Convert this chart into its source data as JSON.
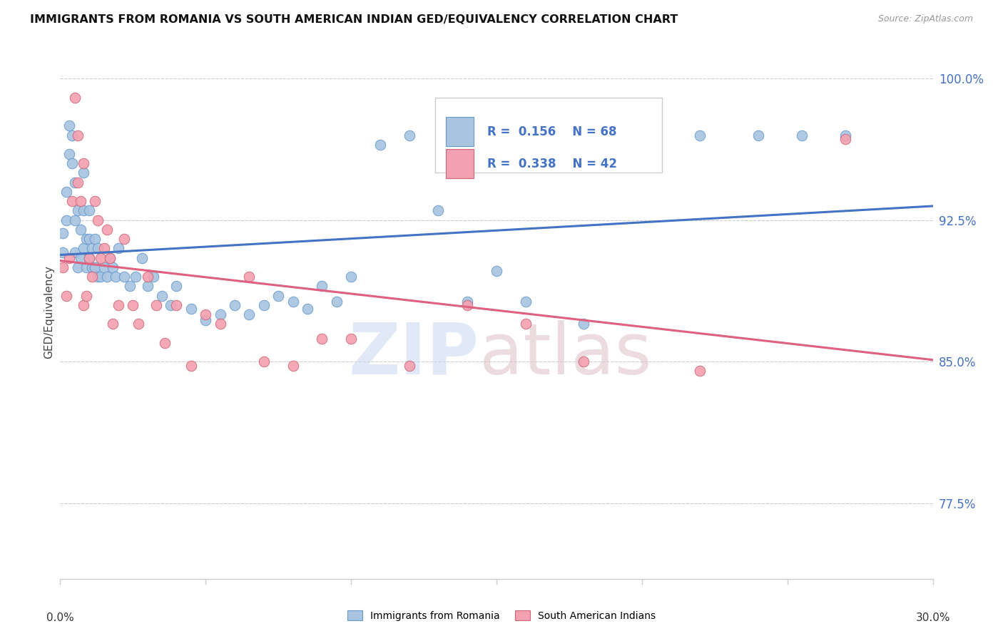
{
  "title": "IMMIGRANTS FROM ROMANIA VS SOUTH AMERICAN INDIAN GED/EQUIVALENCY CORRELATION CHART",
  "source": "Source: ZipAtlas.com",
  "ylabel": "GED/Equivalency",
  "xmin": 0.0,
  "xmax": 0.3,
  "ymin": 0.735,
  "ymax": 1.018,
  "romania_R": 0.156,
  "romania_N": 68,
  "sai_R": 0.338,
  "sai_N": 42,
  "romania_color": "#a8c4e0",
  "romania_edge_color": "#6699cc",
  "sai_color": "#f4a0b0",
  "sai_edge_color": "#cc6677",
  "romania_line_color": "#4472c4",
  "sai_line_color": "#e06080",
  "dashed_line_color": "#aaaaaa",
  "legend_label_romania": "Immigrants from Romania",
  "legend_label_sai": "South American Indians",
  "grid_color": "#cccccc",
  "ytick_vals": [
    0.775,
    0.85,
    0.925,
    1.0
  ],
  "ytick_labels": [
    "77.5%",
    "85.0%",
    "92.5%",
    "100.0%"
  ],
  "xtick_vals": [
    0.0,
    0.05,
    0.1,
    0.15,
    0.2,
    0.25,
    0.3
  ],
  "romania_x": [
    0.001,
    0.001,
    0.002,
    0.002,
    0.003,
    0.003,
    0.004,
    0.004,
    0.005,
    0.005,
    0.005,
    0.006,
    0.006,
    0.007,
    0.007,
    0.008,
    0.008,
    0.008,
    0.009,
    0.009,
    0.01,
    0.01,
    0.01,
    0.011,
    0.011,
    0.012,
    0.012,
    0.013,
    0.013,
    0.014,
    0.015,
    0.016,
    0.017,
    0.018,
    0.019,
    0.02,
    0.022,
    0.024,
    0.026,
    0.028,
    0.03,
    0.032,
    0.035,
    0.038,
    0.04,
    0.045,
    0.05,
    0.055,
    0.06,
    0.065,
    0.07,
    0.075,
    0.08,
    0.085,
    0.09,
    0.095,
    0.1,
    0.11,
    0.12,
    0.13,
    0.14,
    0.15,
    0.16,
    0.18,
    0.22,
    0.24,
    0.255,
    0.27
  ],
  "romania_y": [
    0.908,
    0.918,
    0.925,
    0.94,
    0.96,
    0.975,
    0.955,
    0.97,
    0.908,
    0.925,
    0.945,
    0.9,
    0.93,
    0.905,
    0.92,
    0.91,
    0.93,
    0.95,
    0.9,
    0.915,
    0.905,
    0.915,
    0.93,
    0.9,
    0.91,
    0.9,
    0.915,
    0.895,
    0.91,
    0.895,
    0.9,
    0.895,
    0.905,
    0.9,
    0.895,
    0.91,
    0.895,
    0.89,
    0.895,
    0.905,
    0.89,
    0.895,
    0.885,
    0.88,
    0.89,
    0.878,
    0.872,
    0.875,
    0.88,
    0.875,
    0.88,
    0.885,
    0.882,
    0.878,
    0.89,
    0.882,
    0.895,
    0.965,
    0.97,
    0.93,
    0.882,
    0.898,
    0.882,
    0.87,
    0.97,
    0.97,
    0.97,
    0.97
  ],
  "sai_x": [
    0.001,
    0.002,
    0.003,
    0.004,
    0.005,
    0.006,
    0.006,
    0.007,
    0.008,
    0.008,
    0.009,
    0.01,
    0.011,
    0.012,
    0.013,
    0.014,
    0.015,
    0.016,
    0.017,
    0.018,
    0.02,
    0.022,
    0.025,
    0.027,
    0.03,
    0.033,
    0.036,
    0.04,
    0.045,
    0.05,
    0.055,
    0.065,
    0.07,
    0.08,
    0.09,
    0.1,
    0.12,
    0.14,
    0.16,
    0.18,
    0.22,
    0.27
  ],
  "sai_y": [
    0.9,
    0.885,
    0.905,
    0.935,
    0.99,
    0.97,
    0.945,
    0.935,
    0.955,
    0.88,
    0.885,
    0.905,
    0.895,
    0.935,
    0.925,
    0.905,
    0.91,
    0.92,
    0.905,
    0.87,
    0.88,
    0.915,
    0.88,
    0.87,
    0.895,
    0.88,
    0.86,
    0.88,
    0.848,
    0.875,
    0.87,
    0.895,
    0.85,
    0.848,
    0.862,
    0.862,
    0.848,
    0.88,
    0.87,
    0.85,
    0.845,
    0.968
  ]
}
